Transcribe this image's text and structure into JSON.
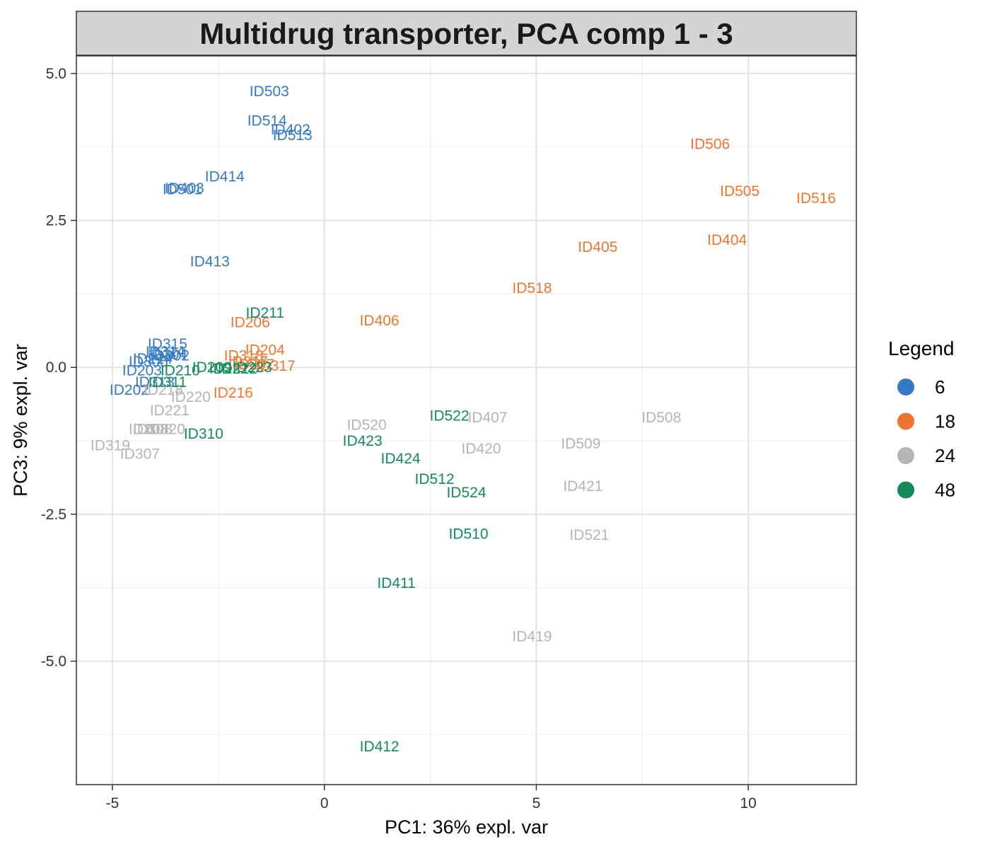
{
  "chart_data": {
    "type": "scatter",
    "title": "Multidrug transporter, PCA comp 1 - 3",
    "xlabel": "PC1: 36% expl. var",
    "ylabel": "PC3: 9% expl. var",
    "xlim": [
      -5.85,
      12.55
    ],
    "ylim": [
      -7.1,
      5.3
    ],
    "x_ticks": [
      -5,
      0,
      5,
      10
    ],
    "x_tick_labels": [
      "-5",
      "0",
      "5",
      "10"
    ],
    "y_ticks": [
      5.0,
      2.5,
      0.0,
      -2.5,
      -5.0
    ],
    "y_tick_labels": [
      "5.0",
      "2.5",
      "0.0",
      "-2.5",
      "-5.0"
    ],
    "grid": true,
    "legend": {
      "title": "Legend",
      "placement": "right",
      "entries": [
        {
          "label": "6",
          "color": "#3579C2"
        },
        {
          "label": "18",
          "color": "#ED762F"
        },
        {
          "label": "24",
          "color": "#B4B4B4"
        },
        {
          "label": "48",
          "color": "#148A5A"
        }
      ]
    },
    "series": [
      {
        "name": "6",
        "color": "#3579C2",
        "points": [
          {
            "label": "ID503",
            "x": -1.3,
            "y": 4.7
          },
          {
            "label": "ID514",
            "x": -1.35,
            "y": 4.2
          },
          {
            "label": "ID402",
            "x": -0.8,
            "y": 4.05
          },
          {
            "label": "ID513",
            "x": -0.75,
            "y": 3.95
          },
          {
            "label": "ID414",
            "x": -2.35,
            "y": 3.25
          },
          {
            "label": "ID403",
            "x": -3.3,
            "y": 3.05
          },
          {
            "label": "ID501",
            "x": -3.35,
            "y": 3.03
          },
          {
            "label": "ID413",
            "x": -2.7,
            "y": 1.8
          },
          {
            "label": "ID315",
            "x": -3.7,
            "y": 0.4
          },
          {
            "label": "ID314",
            "x": -3.75,
            "y": 0.27
          },
          {
            "label": "ID304",
            "x": -3.7,
            "y": 0.22
          },
          {
            "label": "ID302",
            "x": -3.65,
            "y": 0.2
          },
          {
            "label": "ID214",
            "x": -4.05,
            "y": 0.15
          },
          {
            "label": "ID305",
            "x": -4.15,
            "y": 0.1
          },
          {
            "label": "ID203",
            "x": -4.3,
            "y": -0.05
          },
          {
            "label": "ID313",
            "x": -4.0,
            "y": -0.25
          },
          {
            "label": "ID202",
            "x": -4.6,
            "y": -0.38
          }
        ]
      },
      {
        "name": "18",
        "color": "#ED762F",
        "points": [
          {
            "label": "ID506",
            "x": 9.1,
            "y": 3.8
          },
          {
            "label": "ID505",
            "x": 9.8,
            "y": 3.0
          },
          {
            "label": "ID516",
            "x": 11.6,
            "y": 2.88
          },
          {
            "label": "ID404",
            "x": 9.5,
            "y": 2.17
          },
          {
            "label": "ID405",
            "x": 6.45,
            "y": 2.05
          },
          {
            "label": "ID518",
            "x": 4.9,
            "y": 1.35
          },
          {
            "label": "ID406",
            "x": 1.3,
            "y": 0.8
          },
          {
            "label": "ID206",
            "x": -1.75,
            "y": 0.77
          },
          {
            "label": "ID204",
            "x": -1.4,
            "y": 0.3
          },
          {
            "label": "ID318",
            "x": -1.9,
            "y": 0.2
          },
          {
            "label": "ID217",
            "x": -1.8,
            "y": 0.1
          },
          {
            "label": "ID207",
            "x": -1.65,
            "y": 0.05
          },
          {
            "label": "ID317",
            "x": -1.15,
            "y": 0.03
          },
          {
            "label": "ID216",
            "x": -2.15,
            "y": -0.43
          }
        ]
      },
      {
        "name": "24",
        "color": "#B4B4B4",
        "points": [
          {
            "label": "ID218",
            "x": -3.8,
            "y": -0.38
          },
          {
            "label": "ID220",
            "x": -3.15,
            "y": -0.5
          },
          {
            "label": "ID221",
            "x": -3.65,
            "y": -0.73
          },
          {
            "label": "ID508",
            "x": 7.95,
            "y": -0.85
          },
          {
            "label": "ID407",
            "x": 3.85,
            "y": -0.85
          },
          {
            "label": "ID520",
            "x": 1.0,
            "y": -0.98
          },
          {
            "label": "ID208",
            "x": -4.15,
            "y": -1.05
          },
          {
            "label": "ID308",
            "x": -4.05,
            "y": -1.05
          },
          {
            "label": "ID320",
            "x": -3.75,
            "y": -1.05
          },
          {
            "label": "ID509",
            "x": 6.05,
            "y": -1.3
          },
          {
            "label": "ID319",
            "x": -5.05,
            "y": -1.33
          },
          {
            "label": "ID420",
            "x": 3.7,
            "y": -1.38
          },
          {
            "label": "ID307",
            "x": -4.35,
            "y": -1.47
          },
          {
            "label": "ID421",
            "x": 6.1,
            "y": -2.02
          },
          {
            "label": "ID521",
            "x": 6.25,
            "y": -2.85
          },
          {
            "label": "ID419",
            "x": 4.9,
            "y": -4.58
          }
        ]
      },
      {
        "name": "48",
        "color": "#148A5A",
        "points": [
          {
            "label": "ID211",
            "x": -1.4,
            "y": 0.93
          },
          {
            "label": "ID311",
            "x": -3.7,
            "y": -0.25
          },
          {
            "label": "ID210",
            "x": -3.4,
            "y": -0.05
          },
          {
            "label": "ID209",
            "x": -2.65,
            "y": 0.0
          },
          {
            "label": "ID222",
            "x": -2.25,
            "y": -0.02
          },
          {
            "label": "ID212",
            "x": -2.05,
            "y": -0.02
          },
          {
            "label": "ID223",
            "x": -1.7,
            "y": 0.0
          },
          {
            "label": "ID310",
            "x": -2.85,
            "y": -1.13
          },
          {
            "label": "ID522",
            "x": 2.95,
            "y": -0.82
          },
          {
            "label": "ID423",
            "x": 0.9,
            "y": -1.25
          },
          {
            "label": "ID424",
            "x": 1.8,
            "y": -1.55
          },
          {
            "label": "ID512",
            "x": 2.6,
            "y": -1.9
          },
          {
            "label": "ID524",
            "x": 3.35,
            "y": -2.13
          },
          {
            "label": "ID510",
            "x": 3.4,
            "y": -2.83
          },
          {
            "label": "ID411",
            "x": 1.7,
            "y": -3.67
          },
          {
            "label": "ID412",
            "x": 1.3,
            "y": -6.45
          }
        ]
      }
    ]
  }
}
